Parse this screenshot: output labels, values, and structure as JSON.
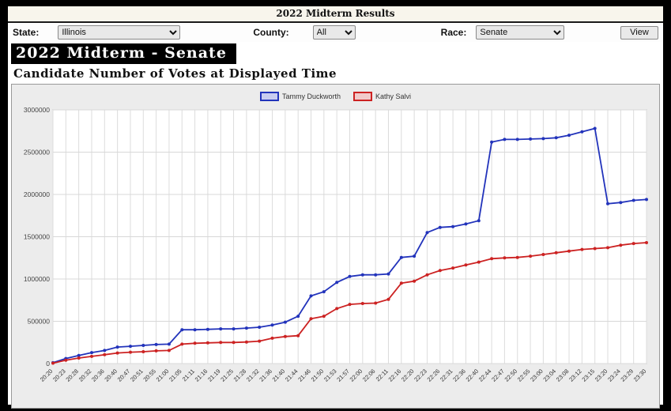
{
  "header": {
    "title": "2022 Midterm Results"
  },
  "controls": {
    "state_label": "State:",
    "state_value": "Illinois",
    "county_label": "County:",
    "county_value": "All",
    "race_label": "Race:",
    "race_value": "Senate",
    "view_button": "View"
  },
  "banner": {
    "title": "2022 Midterm - Senate"
  },
  "subtitle": "Candidate Number of Votes at Displayed Time",
  "chart_data": {
    "type": "line",
    "title": "Candidate Number of Votes at Displayed Time",
    "xlabel": "",
    "ylabel": "",
    "ylim": [
      0,
      3000000
    ],
    "ytick_step": 500000,
    "grid": true,
    "legend_position": "top-center",
    "categories": [
      "20:20",
      "20:23",
      "20:28",
      "20:32",
      "20:36",
      "20:40",
      "20:47",
      "20:51",
      "20:55",
      "21:00",
      "21:05",
      "21:11",
      "21:16",
      "21:19",
      "21:25",
      "21:28",
      "21:32",
      "21:36",
      "21:40",
      "21:44",
      "21:46",
      "21:50",
      "21:53",
      "21:57",
      "22:00",
      "22:06",
      "22:11",
      "22:16",
      "22:20",
      "22:23",
      "22:26",
      "22:31",
      "22:36",
      "22:40",
      "22:44",
      "22:47",
      "22:50",
      "22:55",
      "23:00",
      "23:04",
      "23:08",
      "23:12",
      "23:15",
      "23:20",
      "23:24",
      "23:29",
      "23:30"
    ],
    "series": [
      {
        "name": "Tammy Duckworth",
        "color": "#2233bb",
        "swatch_fill": "#c9cdf0",
        "values": [
          10000,
          60000,
          95000,
          130000,
          155000,
          195000,
          205000,
          215000,
          225000,
          230000,
          400000,
          400000,
          405000,
          410000,
          410000,
          420000,
          430000,
          455000,
          490000,
          560000,
          800000,
          850000,
          960000,
          1030000,
          1050000,
          1050000,
          1060000,
          1255000,
          1270000,
          1550000,
          1610000,
          1620000,
          1650000,
          1690000,
          2620000,
          2650000,
          2650000,
          2655000,
          2660000,
          2670000,
          2700000,
          2740000,
          2780000,
          1890000,
          1905000,
          1930000,
          1940000
        ]
      },
      {
        "name": "Kathy Salvi",
        "color": "#cc2222",
        "swatch_fill": "#f2caca",
        "values": [
          5000,
          40000,
          65000,
          85000,
          105000,
          125000,
          135000,
          140000,
          150000,
          155000,
          230000,
          240000,
          245000,
          250000,
          250000,
          255000,
          265000,
          300000,
          320000,
          330000,
          530000,
          560000,
          650000,
          700000,
          710000,
          715000,
          760000,
          950000,
          975000,
          1050000,
          1100000,
          1130000,
          1165000,
          1200000,
          1240000,
          1250000,
          1255000,
          1270000,
          1290000,
          1310000,
          1330000,
          1350000,
          1360000,
          1370000,
          1400000,
          1420000,
          1430000
        ]
      }
    ]
  }
}
